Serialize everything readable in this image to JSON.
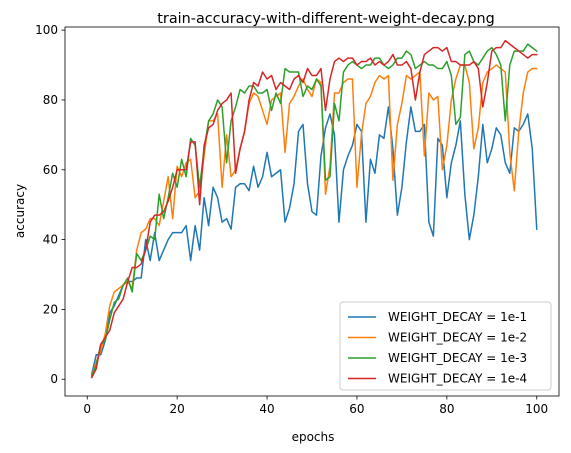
{
  "chart_data": {
    "type": "line",
    "title": "train-accuracy-with-different-weight-decay.png",
    "xlabel": "epochs",
    "ylabel": "accuracy",
    "xlim": [
      -4.95,
      104.95
    ],
    "ylim": [
      -4.8,
      100.9
    ],
    "xticks": [
      0,
      20,
      40,
      60,
      80,
      100
    ],
    "yticks": [
      0,
      20,
      40,
      60,
      80,
      100
    ],
    "grid": false,
    "legend_position": "lower-right",
    "x": [
      1,
      2,
      3,
      4,
      5,
      6,
      7,
      8,
      9,
      10,
      11,
      12,
      13,
      14,
      15,
      16,
      17,
      18,
      19,
      20,
      21,
      22,
      23,
      24,
      25,
      26,
      27,
      28,
      29,
      30,
      31,
      32,
      33,
      34,
      35,
      36,
      37,
      38,
      39,
      40,
      41,
      42,
      43,
      44,
      45,
      46,
      47,
      48,
      49,
      50,
      51,
      52,
      53,
      54,
      55,
      56,
      57,
      58,
      59,
      60,
      61,
      62,
      63,
      64,
      65,
      66,
      67,
      68,
      69,
      70,
      71,
      72,
      73,
      74,
      75,
      76,
      77,
      78,
      79,
      80,
      81,
      82,
      83,
      84,
      85,
      86,
      87,
      88,
      89,
      90,
      91,
      92,
      93,
      94,
      95,
      96,
      97,
      98,
      99,
      100
    ],
    "series": [
      {
        "name": "WEIGHT_DECAY = 1e-1",
        "color": "#1f77b4",
        "values": [
          1.5,
          7,
          7,
          11,
          19,
          21,
          24,
          27,
          28,
          28,
          29,
          29,
          40,
          34,
          42,
          34,
          37,
          40,
          42,
          42,
          42,
          44,
          34,
          44,
          37,
          52,
          44,
          55,
          52,
          45,
          46,
          43,
          55,
          56,
          56,
          54,
          61,
          55,
          58,
          65,
          58,
          59,
          60,
          45,
          49,
          56,
          71,
          73,
          56,
          48,
          47,
          64,
          72,
          76,
          70,
          45,
          60,
          64,
          67,
          73,
          71,
          45,
          63,
          59,
          70,
          69,
          78,
          66,
          47,
          55,
          68,
          78,
          71,
          71,
          73,
          45,
          41,
          69,
          67,
          52,
          62,
          67,
          74,
          53,
          40,
          47,
          58,
          73,
          62,
          66,
          72,
          70,
          62,
          59,
          72,
          71,
          73,
          76,
          66,
          43
        ]
      },
      {
        "name": "WEIGHT_DECAY = 1e-2",
        "color": "#ff7f0e",
        "values": [
          1,
          5,
          8,
          13,
          21,
          25,
          26,
          27,
          28,
          26,
          37,
          42,
          43,
          46,
          46,
          44,
          51,
          58,
          46,
          61,
          58,
          62,
          63,
          52,
          54,
          64,
          74,
          74,
          76,
          55,
          70,
          58,
          60,
          66,
          71,
          79,
          82,
          81,
          77,
          73,
          80,
          81,
          82,
          65,
          79,
          81,
          84,
          86,
          83,
          81,
          86,
          85,
          53,
          61,
          82,
          82,
          85,
          86,
          86,
          55,
          70,
          79,
          81,
          85,
          87,
          86,
          87,
          57,
          73,
          79,
          87,
          86,
          87,
          88,
          64,
          82,
          80,
          81,
          60,
          67,
          80,
          86,
          90,
          90,
          85,
          66,
          72,
          85,
          88,
          89,
          90,
          89,
          88,
          65,
          54,
          71,
          82,
          88,
          89,
          89
        ]
      },
      {
        "name": "WEIGHT_DECAY = 1e-3",
        "color": "#2ca02c",
        "values": [
          1,
          4,
          10,
          11,
          17,
          22,
          23,
          27,
          29,
          25,
          36,
          34,
          37,
          41,
          40,
          53,
          46,
          52,
          59,
          55,
          63,
          58,
          69,
          67,
          55,
          66,
          74,
          76,
          80,
          78,
          62,
          74,
          78,
          83,
          82,
          84,
          84,
          82,
          82,
          83,
          77,
          82,
          79,
          89,
          88,
          88,
          88,
          81,
          84,
          83,
          86,
          84,
          57,
          58,
          79,
          74,
          88,
          90,
          91,
          90,
          89,
          90,
          90,
          92,
          92,
          90,
          89,
          90,
          92,
          92,
          94,
          93,
          89,
          90,
          91,
          90,
          90,
          89,
          89,
          91,
          87,
          73,
          75,
          93,
          94,
          91,
          90,
          92,
          94,
          95,
          93,
          90,
          74,
          90,
          94,
          94,
          94,
          96,
          95,
          94
        ]
      },
      {
        "name": "WEIGHT_DECAY = 1e-4",
        "color": "#d62728",
        "values": [
          0.5,
          3,
          10,
          12,
          14,
          19,
          21,
          23,
          28,
          32,
          32,
          33,
          37,
          45,
          47,
          47,
          48,
          51,
          55,
          60,
          60,
          60,
          68,
          68,
          50,
          67,
          72,
          73,
          77,
          79,
          80,
          82,
          59,
          66,
          71,
          80,
          85,
          84,
          88,
          86,
          87,
          83,
          85,
          84,
          83,
          86,
          87,
          85,
          89,
          87,
          87,
          89,
          77,
          86,
          91,
          92,
          91,
          92,
          92,
          90,
          91,
          91,
          92,
          90,
          91,
          90,
          91,
          93,
          90,
          90,
          91,
          89,
          80,
          88,
          93,
          94,
          95,
          95,
          94,
          95,
          91,
          91,
          90,
          90,
          90,
          91,
          89,
          78,
          85,
          94,
          95,
          95,
          97,
          96,
          95,
          94,
          93,
          92,
          93,
          93
        ]
      }
    ]
  }
}
